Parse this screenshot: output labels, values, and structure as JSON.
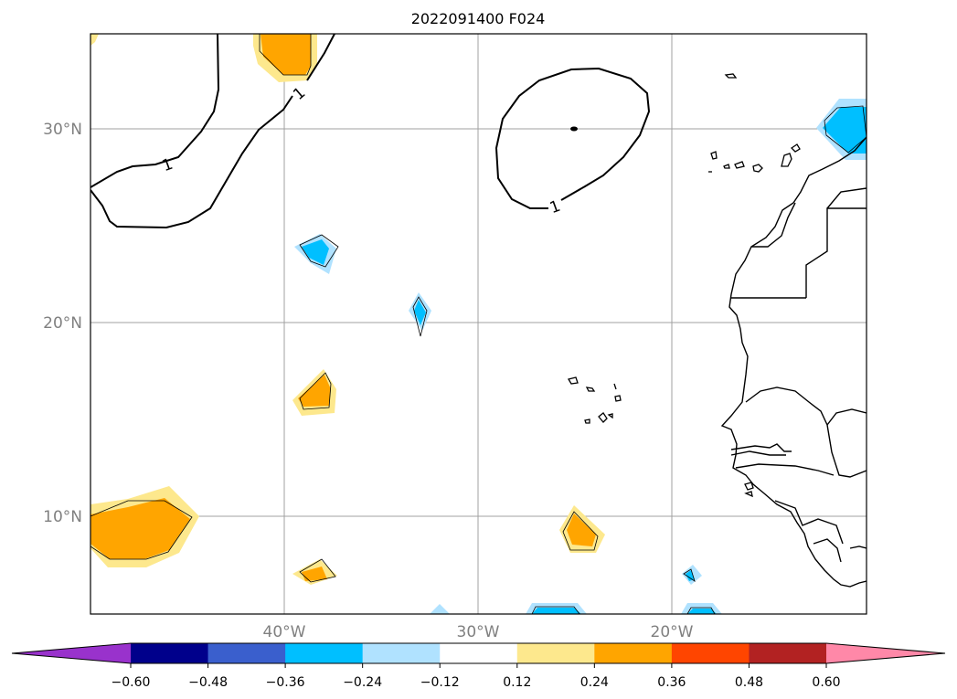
{
  "title": "2022091400 F024",
  "map": {
    "lat_labels": [
      "30°N",
      "20°N",
      "10°N"
    ],
    "lon_labels": [
      "40°W",
      "30°W",
      "20°W"
    ],
    "contour_label": "1"
  },
  "colorbar": {
    "tick_labels": [
      "−0.60",
      "−0.48",
      "−0.36",
      "−0.24",
      "−0.12",
      "0.12",
      "0.24",
      "0.36",
      "0.48",
      "0.60"
    ],
    "colors": [
      "#9932cc",
      "#00008b",
      "#3a5fcd",
      "#00bfff",
      "#b0e2ff",
      "#ffffff",
      "#fde88d",
      "#ffa500",
      "#ff4500",
      "#b22222",
      "#ff88a8"
    ],
    "extend_min_color": "#9932cc",
    "extend_max_color": "#ff88a8"
  }
}
